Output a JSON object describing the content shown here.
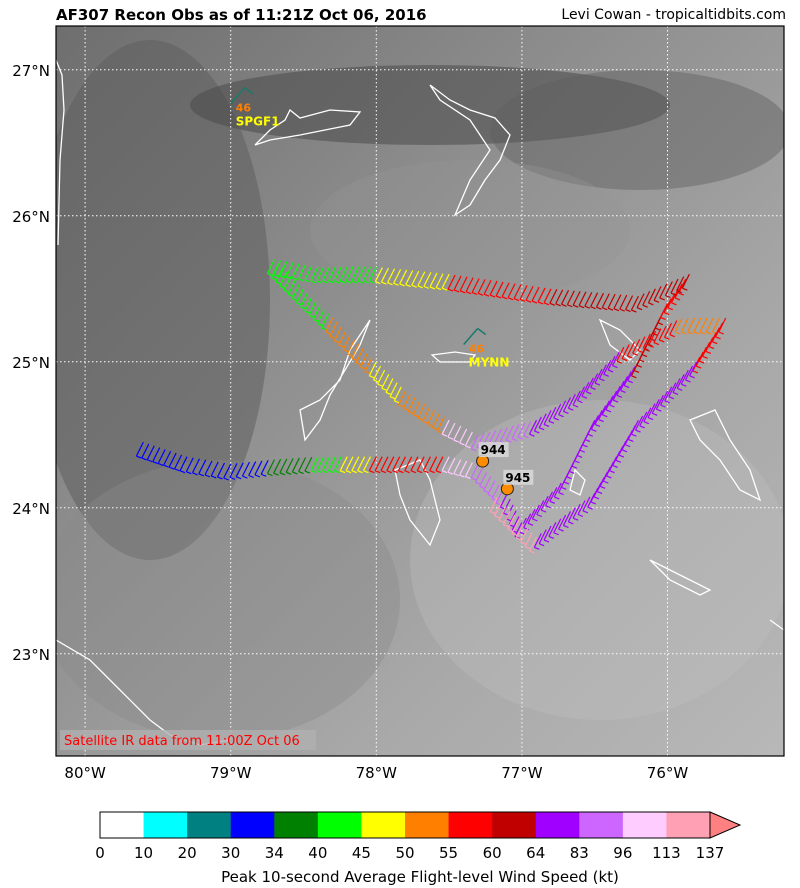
{
  "header": {
    "title": "AF307 Recon Obs as of 11:21Z Oct 06, 2016",
    "credit": "Levi Cowan - tropicaltidbits.com"
  },
  "map": {
    "lon_range": [
      -80.2,
      -75.2
    ],
    "lat_range": [
      22.3,
      27.3
    ],
    "lon_ticks": [
      {
        "value": -80,
        "label": "80°W"
      },
      {
        "value": -79,
        "label": "79°W"
      },
      {
        "value": -78,
        "label": "78°W"
      },
      {
        "value": -77,
        "label": "77°W"
      },
      {
        "value": -76,
        "label": "76°W"
      }
    ],
    "lat_ticks": [
      {
        "value": 27,
        "label": "27°N"
      },
      {
        "value": 26,
        "label": "26°N"
      },
      {
        "value": 25,
        "label": "25°N"
      },
      {
        "value": 24,
        "label": "24°N"
      },
      {
        "value": 23,
        "label": "23°N"
      }
    ],
    "grid": "dotted white",
    "background": "grayscale satellite IR",
    "satellite_note": "Satellite IR data from 11:00Z Oct 06"
  },
  "stations": [
    {
      "id": "SPGF1",
      "value": "46",
      "lon": -79.0,
      "lat": 26.7
    },
    {
      "id": "MYNN",
      "value": "46",
      "lon": -77.4,
      "lat": 25.05
    }
  ],
  "pressure_obs": [
    {
      "value": "944",
      "lon": -77.27,
      "lat": 24.32
    },
    {
      "value": "945",
      "lon": -77.1,
      "lat": 24.13
    }
  ],
  "flight_track": [
    {
      "lon": -79.6,
      "lat": 24.45,
      "band": 2
    },
    {
      "lon": -79.3,
      "lat": 24.35,
      "band": 3
    },
    {
      "lon": -79.0,
      "lat": 24.3,
      "band": 3
    },
    {
      "lon": -78.7,
      "lat": 24.33,
      "band": 3
    },
    {
      "lon": -78.4,
      "lat": 24.35,
      "band": 4
    },
    {
      "lon": -78.2,
      "lat": 24.35,
      "band": 5
    },
    {
      "lon": -78.0,
      "lat": 24.35,
      "band": 6
    },
    {
      "lon": -77.8,
      "lat": 24.35,
      "band": 8
    },
    {
      "lon": -77.5,
      "lat": 24.35,
      "band": 8
    },
    {
      "lon": -77.3,
      "lat": 24.3,
      "band": 12
    },
    {
      "lon": -77.1,
      "lat": 24.1,
      "band": 11
    },
    {
      "lon": -77.0,
      "lat": 23.9,
      "band": 10
    },
    {
      "lon": -76.7,
      "lat": 24.2,
      "band": 10
    },
    {
      "lon": -76.5,
      "lat": 24.6,
      "band": 10
    },
    {
      "lon": -76.2,
      "lat": 25.0,
      "band": 10
    },
    {
      "lon": -76.0,
      "lat": 25.4,
      "band": 9
    },
    {
      "lon": -75.85,
      "lat": 25.6,
      "band": 8
    },
    {
      "lon": -76.2,
      "lat": 25.45,
      "band": 9
    },
    {
      "lon": -76.8,
      "lat": 25.5,
      "band": 9
    },
    {
      "lon": -77.5,
      "lat": 25.6,
      "band": 8
    },
    {
      "lon": -78.0,
      "lat": 25.65,
      "band": 6
    },
    {
      "lon": -78.4,
      "lat": 25.65,
      "band": 5
    },
    {
      "lon": -78.7,
      "lat": 25.7,
      "band": 5
    },
    {
      "lon": -78.3,
      "lat": 25.3,
      "band": 5
    },
    {
      "lon": -78.0,
      "lat": 25.0,
      "band": 7
    },
    {
      "lon": -77.8,
      "lat": 24.8,
      "band": 6
    },
    {
      "lon": -77.5,
      "lat": 24.6,
      "band": 7
    },
    {
      "lon": -77.3,
      "lat": 24.5,
      "band": 12
    },
    {
      "lon": -76.9,
      "lat": 24.6,
      "band": 11
    },
    {
      "lon": -76.6,
      "lat": 24.8,
      "band": 10
    },
    {
      "lon": -76.3,
      "lat": 25.1,
      "band": 10
    },
    {
      "lon": -75.9,
      "lat": 25.3,
      "band": 8
    },
    {
      "lon": -75.6,
      "lat": 25.3,
      "band": 7
    },
    {
      "lon": -75.8,
      "lat": 25.0,
      "band": 8
    },
    {
      "lon": -76.2,
      "lat": 24.6,
      "band": 10
    },
    {
      "lon": -76.5,
      "lat": 24.1,
      "band": 10
    },
    {
      "lon": -76.9,
      "lat": 23.8,
      "band": 10
    },
    {
      "lon": -77.2,
      "lat": 24.1,
      "band": 13
    }
  ],
  "colorbar": {
    "label": "Peak 10-second Average Flight-level Wind Speed (kt)",
    "bins": [
      {
        "label": "0",
        "color": "#ffffff"
      },
      {
        "label": "10",
        "color": "#00ffff"
      },
      {
        "label": "20",
        "color": "#008080"
      },
      {
        "label": "30",
        "color": "#0000ff"
      },
      {
        "label": "34",
        "color": "#008000"
      },
      {
        "label": "40",
        "color": "#00ff00"
      },
      {
        "label": "45",
        "color": "#ffff00"
      },
      {
        "label": "50",
        "color": "#ff8000"
      },
      {
        "label": "55",
        "color": "#ff0000"
      },
      {
        "label": "60",
        "color": "#c00000"
      },
      {
        "label": "64",
        "color": "#a000ff"
      },
      {
        "label": "83",
        "color": "#cc66ff"
      },
      {
        "label": "96",
        "color": "#ffccff"
      },
      {
        "label": "113",
        "color": "#ffa0b4"
      }
    ],
    "end_label": "137",
    "extend_color": "#ff8080"
  }
}
